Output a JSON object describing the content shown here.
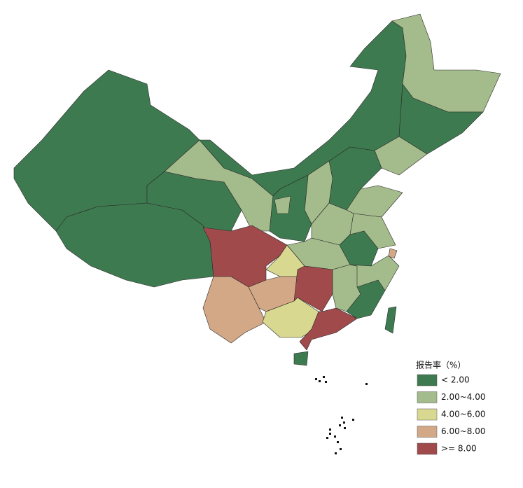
{
  "legend": {
    "title": "报告率（%）",
    "items": [
      {
        "label": "< 2.00",
        "color": "#3e7a50"
      },
      {
        "label": "2.00~4.00",
        "color": "#a4bb8b"
      },
      {
        "label": "4.00~6.00",
        "color": "#d8d890"
      },
      {
        "label": "6.00~8.00",
        "color": "#d3a887"
      },
      {
        "label": ">= 8.00",
        "color": "#a04a4c"
      }
    ]
  }
}
